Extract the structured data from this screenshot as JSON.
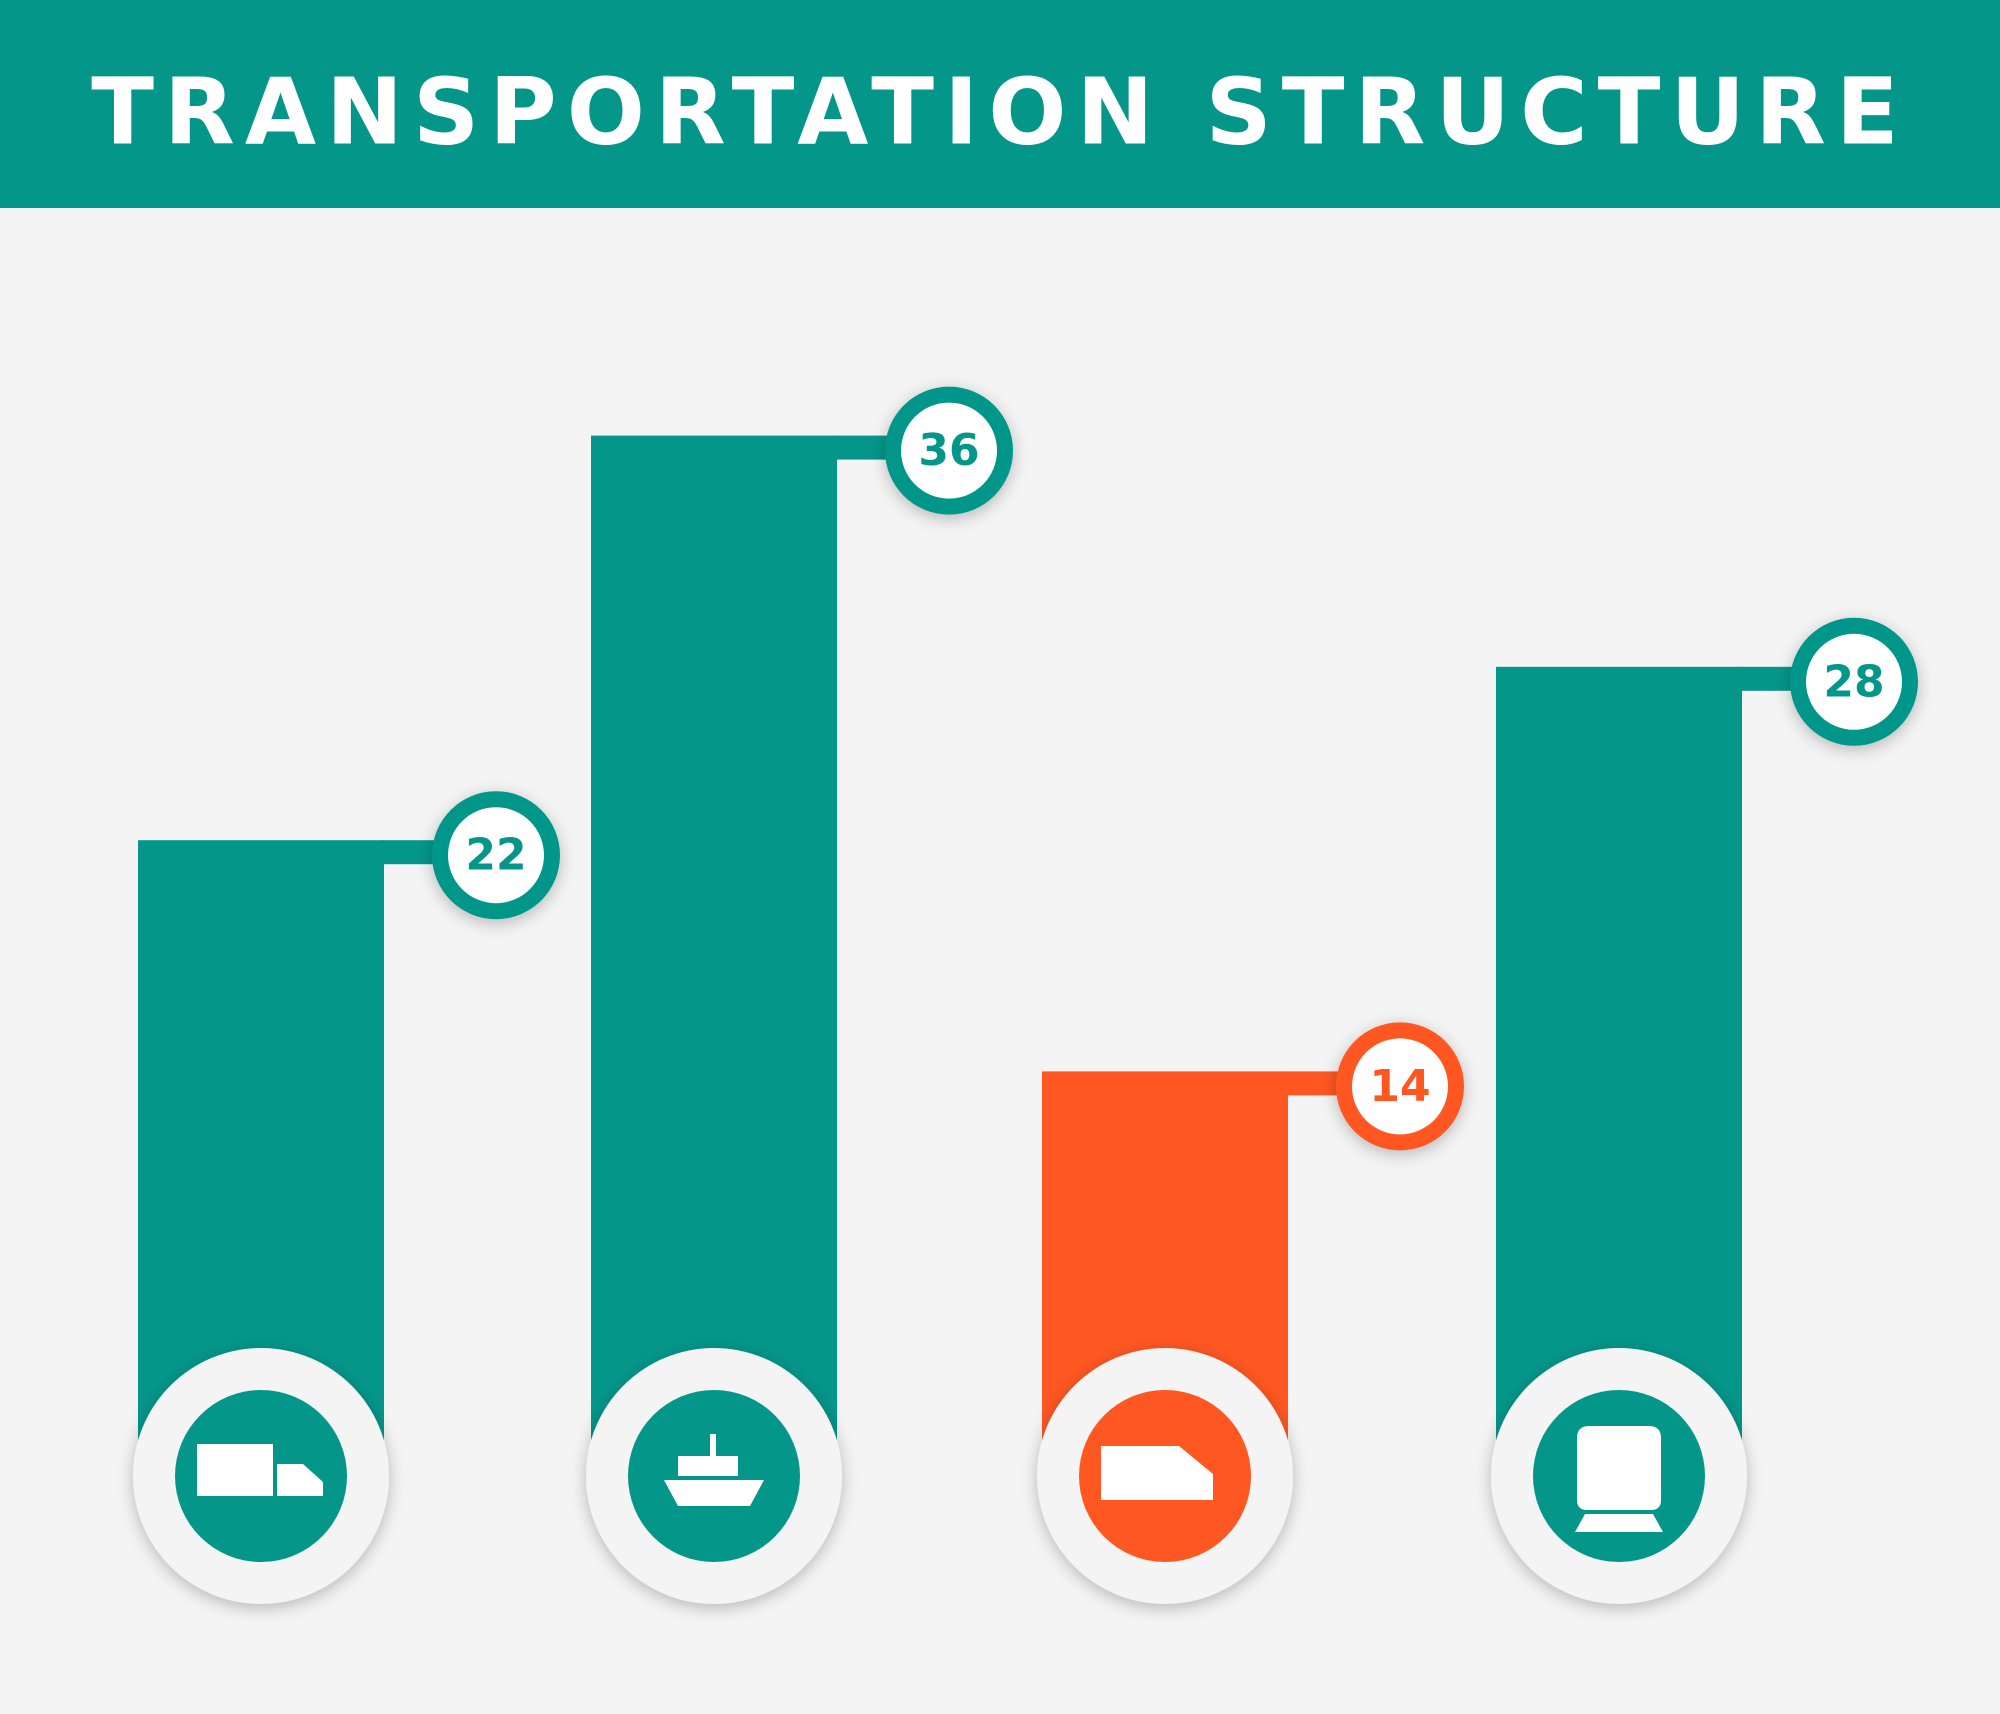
{
  "chart_data": {
    "type": "bar",
    "title": "TRANSPORTATION STRUCTURE",
    "categories": [
      null,
      null,
      null,
      null
    ],
    "values": [
      22,
      36,
      14,
      28
    ],
    "colors": [
      "#05968a",
      "#05968a",
      "#ff5722",
      "#05968a"
    ]
  }
}
